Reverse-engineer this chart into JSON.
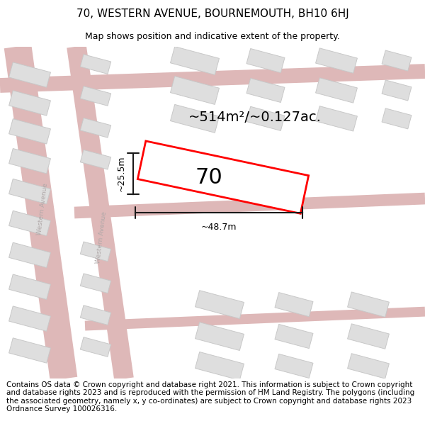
{
  "title": "70, WESTERN AVENUE, BOURNEMOUTH, BH10 6HJ",
  "subtitle": "Map shows position and indicative extent of the property.",
  "footer": "Contains OS data © Crown copyright and database right 2021. This information is subject to Crown copyright and database rights 2023 and is reproduced with the permission of HM Land Registry. The polygons (including the associated geometry, namely x, y co-ordinates) are subject to Crown copyright and database rights 2023 Ordnance Survey 100026316.",
  "map_bg": "#f2f2f0",
  "road_color": "#deb8b8",
  "road_fill": "#f5e8e8",
  "building_fill": "#dedede",
  "building_edge": "#c8c8c8",
  "highlight_color": "#ff0000",
  "area_text": "~514m²/~0.127ac.",
  "label_text": "70",
  "width_text": "~48.7m",
  "height_text": "~25.5m",
  "title_fontsize": 11,
  "subtitle_fontsize": 9,
  "footer_fontsize": 7.5,
  "road_label_color": "#b0a8a8",
  "dim_line_color": "#1a1a1a"
}
